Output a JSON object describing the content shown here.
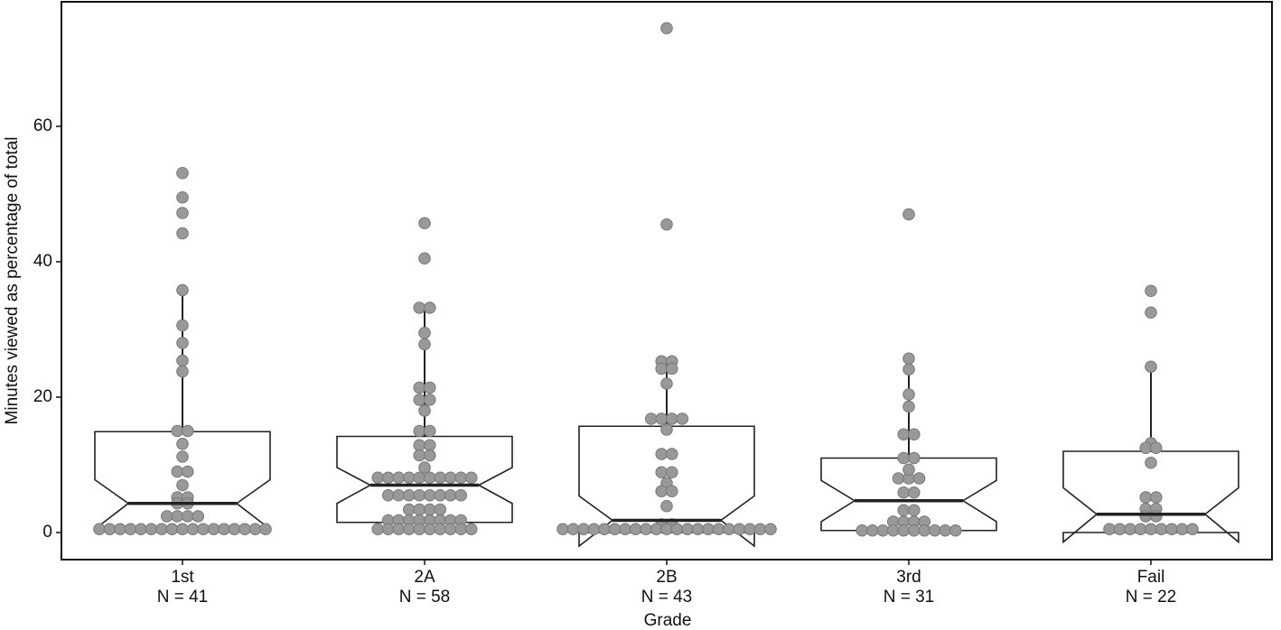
{
  "chart_data": {
    "type": "notched-box-dot",
    "x_label": "Grade",
    "y_label": "Minutes viewed as percentage of total",
    "categories": [
      "1st",
      "2A",
      "2B",
      "3rd",
      "Fail"
    ],
    "n_labels": [
      "N = 41",
      "N = 58",
      "N = 43",
      "N = 31",
      "N = 22"
    ],
    "ylim": [
      -4,
      78.4
    ],
    "yticks": [
      0,
      20,
      40,
      60
    ],
    "box_color": "#222222",
    "point_color": "#999999",
    "boxes": [
      {
        "q1": 0.3,
        "median": 4.3,
        "q3": 14.9,
        "notch_low": 0.5,
        "notch_high": 7.8,
        "whisker_high": 35.8
      },
      {
        "q1": 1.5,
        "median": 7,
        "q3": 14.2,
        "notch_low": 4.3,
        "notch_high": 9.6,
        "whisker_high": 33
      },
      {
        "q1": 0,
        "median": 1.8,
        "q3": 15.7,
        "notch_low": -2,
        "notch_high": 5.4,
        "whisker_high": 25.3
      },
      {
        "q1": 0.3,
        "median": 4.7,
        "q3": 11,
        "notch_low": 1.6,
        "notch_high": 7.7,
        "whisker_high": 25.7
      },
      {
        "q1": 0,
        "median": 2.7,
        "q3": 12,
        "notch_low": -1.4,
        "notch_high": 6.6,
        "whisker_high": 24.5
      }
    ],
    "points": [
      [
        53.1,
        49.5,
        47.2,
        44.2,
        35.8,
        30.6,
        28,
        25.4,
        23.8,
        15,
        15,
        13.1,
        11.2,
        9,
        9,
        7,
        5.2,
        5.2,
        4.3,
        4.3,
        2.4,
        2.4,
        2.4,
        2.4,
        0.5,
        0.5,
        0.5,
        0.5,
        0.5,
        0.5,
        0.5,
        0.5,
        0.5,
        0.5,
        0.5,
        0.5,
        0.5,
        0.5,
        0.5,
        0.5,
        0.5
      ],
      [
        45.7,
        40.5,
        33.2,
        33.2,
        29.5,
        27.8,
        21.4,
        21.4,
        19.6,
        19.6,
        18,
        15,
        15,
        12.9,
        12.9,
        11.4,
        11.4,
        9.6,
        8.1,
        8.1,
        8.1,
        8.1,
        8.1,
        8.1,
        8.1,
        8.1,
        8.1,
        8.1,
        5.5,
        5.5,
        5.5,
        5.5,
        5.5,
        5.5,
        5.5,
        5.5,
        3.4,
        3.4,
        3.4,
        3.4,
        1.8,
        1.8,
        1.8,
        1.8,
        1.8,
        1.8,
        1.8,
        1.8,
        0.5,
        0.5,
        0.5,
        0.5,
        0.5,
        0.5,
        0.5,
        0.5,
        0.5,
        0.5
      ],
      [
        74.5,
        45.5,
        25.3,
        25.3,
        24.2,
        24.2,
        22,
        16.8,
        16.8,
        16.8,
        16.8,
        15.2,
        11.6,
        11.6,
        8.9,
        8.9,
        7.3,
        6.1,
        6.1,
        3.9,
        1.2,
        1.2,
        0.5,
        0.5,
        0.5,
        0.5,
        0.5,
        0.5,
        0.5,
        0.5,
        0.5,
        0.5,
        0.5,
        0.5,
        0.5,
        0.5,
        0.5,
        0.5,
        0.5,
        0.5,
        0.5,
        0.5,
        0.5
      ],
      [
        47,
        25.7,
        24.1,
        20.4,
        18.6,
        14.5,
        14.5,
        11,
        11,
        9.3,
        8,
        8,
        8,
        5.9,
        5.9,
        3.3,
        3.3,
        1.6,
        1.6,
        1.6,
        1.6,
        0.3,
        0.3,
        0.3,
        0.3,
        0.3,
        0.3,
        0.3,
        0.3,
        0.3,
        0.3
      ],
      [
        35.7,
        32.5,
        24.5,
        13.2,
        12.5,
        12.5,
        10.3,
        5.2,
        5.2,
        3.5,
        3.5,
        2.4,
        2.4,
        0.5,
        0.5,
        0.5,
        0.5,
        0.5,
        0.5,
        0.5,
        0.5,
        0.5
      ]
    ]
  }
}
